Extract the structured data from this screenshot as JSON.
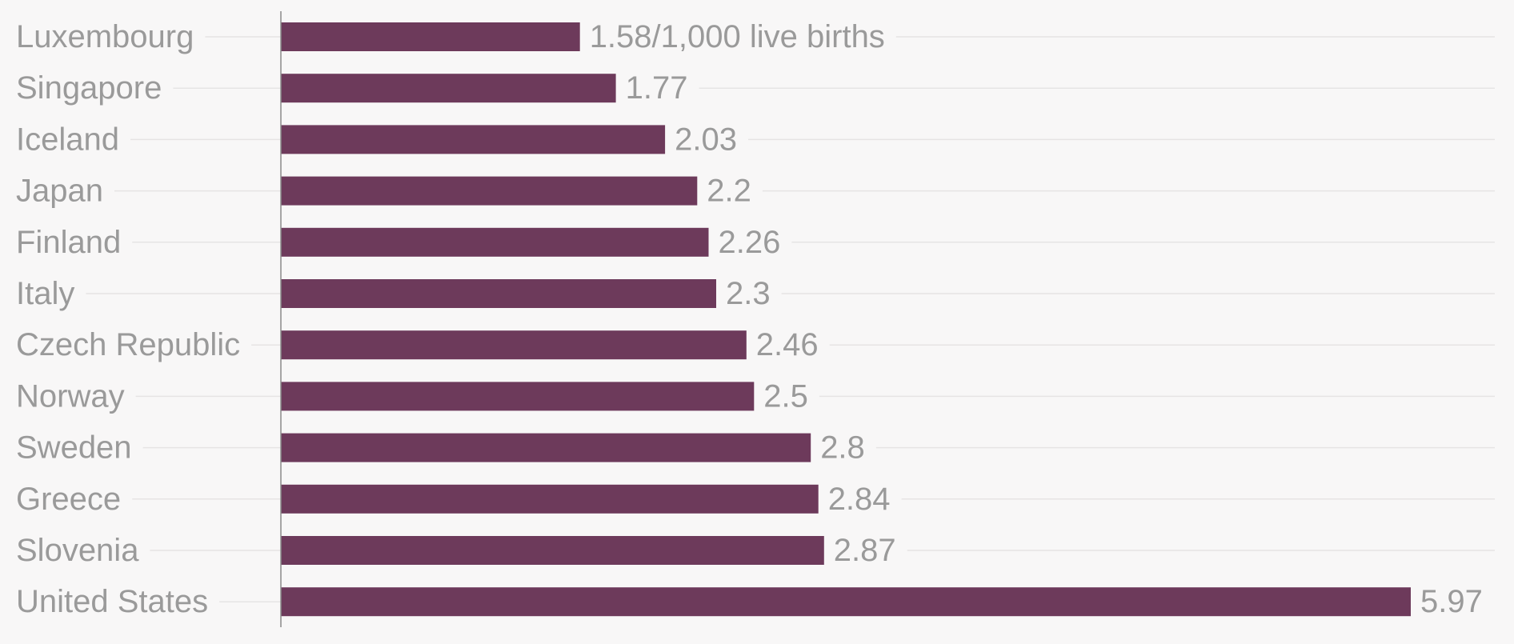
{
  "chart_data": {
    "type": "bar",
    "orientation": "horizontal",
    "categories": [
      "Luxembourg",
      "Singapore",
      "Iceland",
      "Japan",
      "Finland",
      "Italy",
      "Czech Republic",
      "Norway",
      "Sweden",
      "Greece",
      "Slovenia",
      "United States"
    ],
    "values": [
      1.58,
      1.77,
      2.03,
      2.2,
      2.26,
      2.3,
      2.46,
      2.5,
      2.8,
      2.84,
      2.87,
      5.97
    ],
    "data_labels": [
      "1.58/1,000 live births",
      "1.77",
      "2.03",
      "2.2",
      "2.26",
      "2.3",
      "2.46",
      "2.5",
      "2.8",
      "2.84",
      "2.87",
      "5.97"
    ],
    "xlim": [
      0,
      6.0
    ],
    "grid": true,
    "colors": {
      "bar": "#6d3a5b",
      "label": "#9a9a9a",
      "gridline": "#e6e4e4",
      "axis": "#8a8a8a",
      "background": "#f8f7f7"
    }
  }
}
